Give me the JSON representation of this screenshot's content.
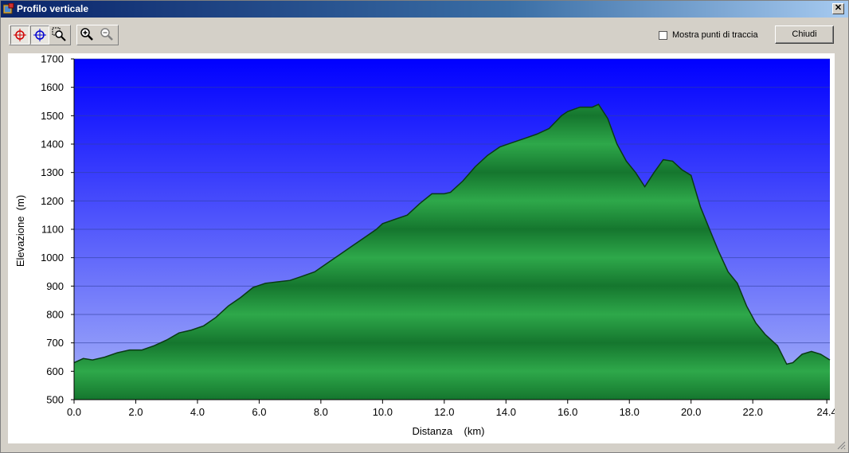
{
  "window": {
    "title": "Profilo verticale",
    "close_glyph": "✕"
  },
  "toolbar": {
    "tools": [
      {
        "name": "crosshair-red-icon",
        "active": true
      },
      {
        "name": "crosshair-blue-icon",
        "active": true
      },
      {
        "name": "zoom-area-icon",
        "active": false
      },
      {
        "name": "zoom-in-icon",
        "active": false
      },
      {
        "name": "zoom-out-icon",
        "active": false
      }
    ],
    "show_track_points_label": "Mostra punti di traccia",
    "show_track_points_checked": false,
    "close_label": "Chiudi"
  },
  "colors": {
    "sky_top": "#0000ff",
    "sky_bottom": "#a8b4f8",
    "fill_light": "#2ea84a",
    "fill_dark": "#15762e",
    "line": "#0a3a14"
  },
  "chart_data": {
    "type": "area",
    "title": "",
    "xlabel": "Distanza    (km)",
    "ylabel": "Elevazione  (m)",
    "xlim": [
      0,
      24.5
    ],
    "ylim": [
      500,
      1700
    ],
    "xticks": [
      "0.0",
      "2.0",
      "4.0",
      "6.0",
      "8.0",
      "10.0",
      "12.0",
      "14.0",
      "16.0",
      "18.0",
      "20.0",
      "22.0",
      "24.4"
    ],
    "xtick_values": [
      0,
      2,
      4,
      6,
      8,
      10,
      12,
      14,
      16,
      18,
      20,
      22,
      24.4
    ],
    "yticks": [
      "1700",
      "1600",
      "1500",
      "1400",
      "1300",
      "1200",
      "1100",
      "1000",
      "900",
      "800",
      "700",
      "600",
      "500"
    ],
    "ytick_values": [
      1700,
      1600,
      1500,
      1400,
      1300,
      1200,
      1100,
      1000,
      900,
      800,
      700,
      600,
      500
    ],
    "grid": true,
    "series": [
      {
        "x": [
          0,
          0.3,
          0.6,
          1.0,
          1.4,
          1.8,
          2.2,
          2.6,
          3.0,
          3.4,
          3.8,
          4.2,
          4.6,
          5.0,
          5.4,
          5.8,
          6.2,
          6.6,
          7.0,
          7.4,
          7.8,
          8.2,
          8.6,
          9.0,
          9.4,
          9.8,
          10.0,
          10.4,
          10.8,
          11.2,
          11.6,
          12.0,
          12.2,
          12.6,
          13.0,
          13.4,
          13.8,
          14.2,
          14.6,
          15.0,
          15.4,
          15.8,
          16.0,
          16.4,
          16.8,
          17.0,
          17.3,
          17.6,
          17.9,
          18.2,
          18.5,
          18.8,
          19.1,
          19.4,
          19.7,
          20.0,
          20.3,
          20.6,
          20.9,
          21.2,
          21.5,
          21.8,
          22.1,
          22.4,
          22.8,
          23.1,
          23.3,
          23.6,
          23.9,
          24.2,
          24.5
        ],
        "y": [
          630,
          645,
          640,
          650,
          665,
          675,
          675,
          690,
          710,
          735,
          745,
          760,
          790,
          830,
          860,
          895,
          910,
          915,
          920,
          935,
          950,
          980,
          1010,
          1040,
          1070,
          1100,
          1120,
          1135,
          1150,
          1190,
          1225,
          1225,
          1230,
          1270,
          1320,
          1360,
          1390,
          1405,
          1420,
          1435,
          1455,
          1500,
          1515,
          1530,
          1530,
          1540,
          1490,
          1400,
          1340,
          1300,
          1250,
          1300,
          1345,
          1340,
          1310,
          1290,
          1180,
          1100,
          1020,
          950,
          910,
          830,
          770,
          730,
          690,
          625,
          630,
          660,
          670,
          660,
          640
        ]
      }
    ]
  }
}
